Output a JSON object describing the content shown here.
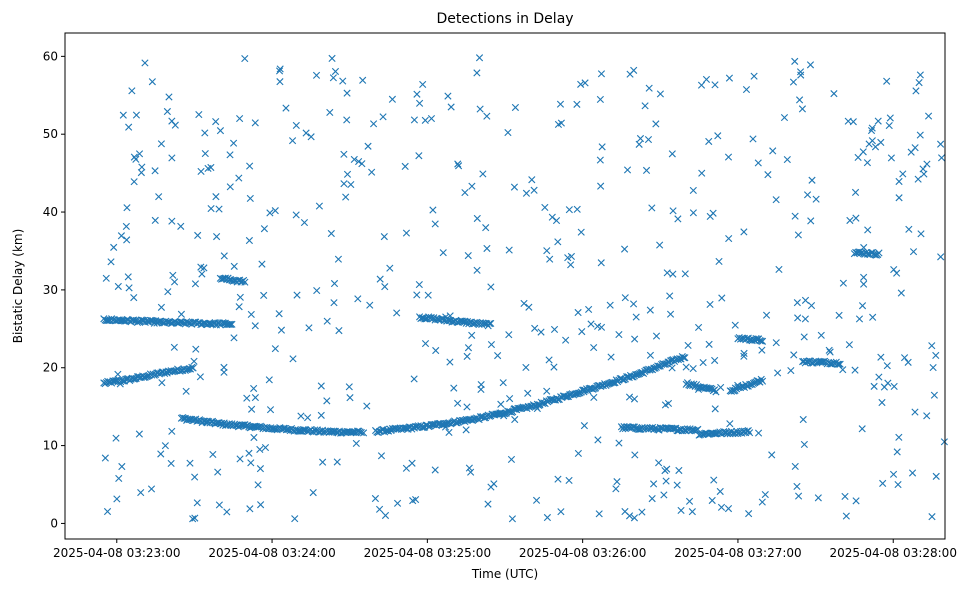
{
  "chart_data": {
    "type": "scatter",
    "title": "Detections in Delay",
    "xlabel": "Time (UTC)",
    "ylabel": "Bistatic Delay (km)",
    "x_domain": [
      "2025-04-08 03:22:55",
      "2025-04-08 03:28:20"
    ],
    "xlim": [
      "2025-04-08 03:22:40",
      "2025-04-08 03:28:20"
    ],
    "ylim": [
      -2,
      63
    ],
    "x_ticks": [
      "2025-04-08 03:23:00",
      "2025-04-08 03:24:00",
      "2025-04-08 03:25:00",
      "2025-04-08 03:26:00",
      "2025-04-08 03:27:00",
      "2025-04-08 03:28:00"
    ],
    "y_ticks": [
      0,
      10,
      20,
      30,
      40,
      50,
      60
    ],
    "grid": false,
    "marker": "x",
    "color": "#1f77b4",
    "tracks": [
      {
        "x": [
          "2025-04-08 03:22:55",
          "2025-04-08 03:23:05",
          "2025-04-08 03:23:20",
          "2025-04-08 03:23:30"
        ],
        "y": [
          18.0,
          18.5,
          19.5,
          20.0
        ]
      },
      {
        "x": [
          "2025-04-08 03:23:25",
          "2025-04-08 03:23:40",
          "2025-04-08 03:24:00",
          "2025-04-08 03:24:20",
          "2025-04-08 03:24:35"
        ],
        "y": [
          13.5,
          12.8,
          12.2,
          11.8,
          11.7
        ]
      },
      {
        "x": [
          "2025-04-08 03:24:40",
          "2025-04-08 03:25:00",
          "2025-04-08 03:25:20",
          "2025-04-08 03:25:40",
          "2025-04-08 03:26:00",
          "2025-04-08 03:26:20",
          "2025-04-08 03:26:40"
        ],
        "y": [
          11.8,
          12.5,
          13.5,
          15.0,
          17.0,
          19.0,
          21.5
        ]
      },
      {
        "x": [
          "2025-04-08 03:26:40",
          "2025-04-08 03:26:52"
        ],
        "y": [
          18.0,
          17.0
        ]
      },
      {
        "x": [
          "2025-04-08 03:26:57",
          "2025-04-08 03:27:10"
        ],
        "y": [
          17.0,
          18.5
        ]
      },
      {
        "x": [
          "2025-04-08 03:24:57",
          "2025-04-08 03:25:10",
          "2025-04-08 03:25:25"
        ],
        "y": [
          26.5,
          26.0,
          25.5
        ]
      },
      {
        "x": [
          "2025-04-08 03:22:55",
          "2025-04-08 03:23:20",
          "2025-04-08 03:23:45"
        ],
        "y": [
          26.2,
          25.8,
          25.6
        ]
      },
      {
        "x": [
          "2025-04-08 03:26:15",
          "2025-04-08 03:26:45"
        ],
        "y": [
          12.3,
          12.0
        ]
      },
      {
        "x": [
          "2025-04-08 03:26:45",
          "2025-04-08 03:27:05"
        ],
        "y": [
          11.5,
          11.8
        ]
      },
      {
        "x": [
          "2025-04-08 03:27:25",
          "2025-04-08 03:27:40"
        ],
        "y": [
          20.8,
          20.6
        ]
      },
      {
        "x": [
          "2025-04-08 03:27:45",
          "2025-04-08 03:27:55"
        ],
        "y": [
          34.8,
          34.6
        ]
      },
      {
        "x": [
          "2025-04-08 03:23:40",
          "2025-04-08 03:23:50"
        ],
        "y": [
          31.5,
          31.0
        ]
      },
      {
        "x": [
          "2025-04-08 03:27:00",
          "2025-04-08 03:27:10"
        ],
        "y": [
          23.8,
          23.5
        ]
      }
    ],
    "scatter_count": 560,
    "scatter_range": {
      "y": [
        0.5,
        60
      ]
    }
  }
}
